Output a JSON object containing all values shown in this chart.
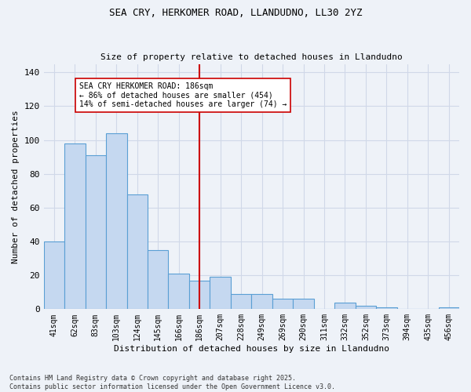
{
  "title": "SEA CRY, HERKOMER ROAD, LLANDUDNO, LL30 2YZ",
  "subtitle": "Size of property relative to detached houses in Llandudno",
  "xlabel": "Distribution of detached houses by size in Llandudno",
  "ylabel": "Number of detached properties",
  "categories": [
    "41sqm",
    "62sqm",
    "83sqm",
    "103sqm",
    "124sqm",
    "145sqm",
    "166sqm",
    "186sqm",
    "207sqm",
    "228sqm",
    "249sqm",
    "269sqm",
    "290sqm",
    "311sqm",
    "332sqm",
    "352sqm",
    "373sqm",
    "394sqm",
    "435sqm",
    "456sqm"
  ],
  "values": [
    40,
    98,
    91,
    104,
    68,
    35,
    21,
    17,
    19,
    9,
    9,
    6,
    6,
    0,
    4,
    2,
    1,
    0,
    0,
    1
  ],
  "bar_color": "#c5d8f0",
  "bar_edge_color": "#5a9fd4",
  "vline_index": 7,
  "highlight_label": "SEA CRY HERKOMER ROAD: 186sqm",
  "highlight_line1": "← 86% of detached houses are smaller (454)",
  "highlight_line2": "14% of semi-detached houses are larger (74) →",
  "vline_color": "#cc0000",
  "annotation_box_color": "#ffffff",
  "annotation_box_edge": "#cc0000",
  "ylim": [
    0,
    145
  ],
  "yticks": [
    0,
    20,
    40,
    60,
    80,
    100,
    120,
    140
  ],
  "grid_color": "#d0d8e8",
  "bg_color": "#eef2f8",
  "footer": "Contains HM Land Registry data © Crown copyright and database right 2025.\nContains public sector information licensed under the Open Government Licence v3.0.",
  "title_fontsize": 9,
  "subtitle_fontsize": 8,
  "axis_label_fontsize": 8,
  "tick_fontsize": 7,
  "footer_fontsize": 6
}
